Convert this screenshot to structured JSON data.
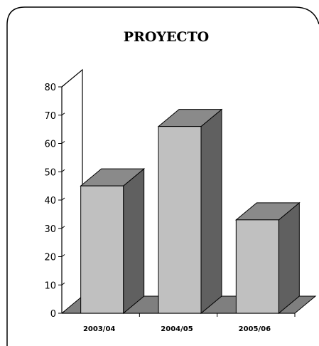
{
  "chart_data": {
    "type": "bar",
    "title": "PROYECTO",
    "categories": [
      "2003/04",
      "2004/05",
      "2005/06"
    ],
    "values": [
      45,
      66,
      33
    ],
    "ylim": [
      0,
      80
    ],
    "yticks": [
      0,
      10,
      20,
      30,
      40,
      50,
      60,
      70,
      80
    ],
    "three_d": true,
    "grid": false,
    "legend": "none",
    "colors": {
      "front": "#c0c0c0",
      "top": "#8a8a8a",
      "side": "#606060",
      "floor": "#7f7f7f",
      "frame": "#000000"
    }
  }
}
